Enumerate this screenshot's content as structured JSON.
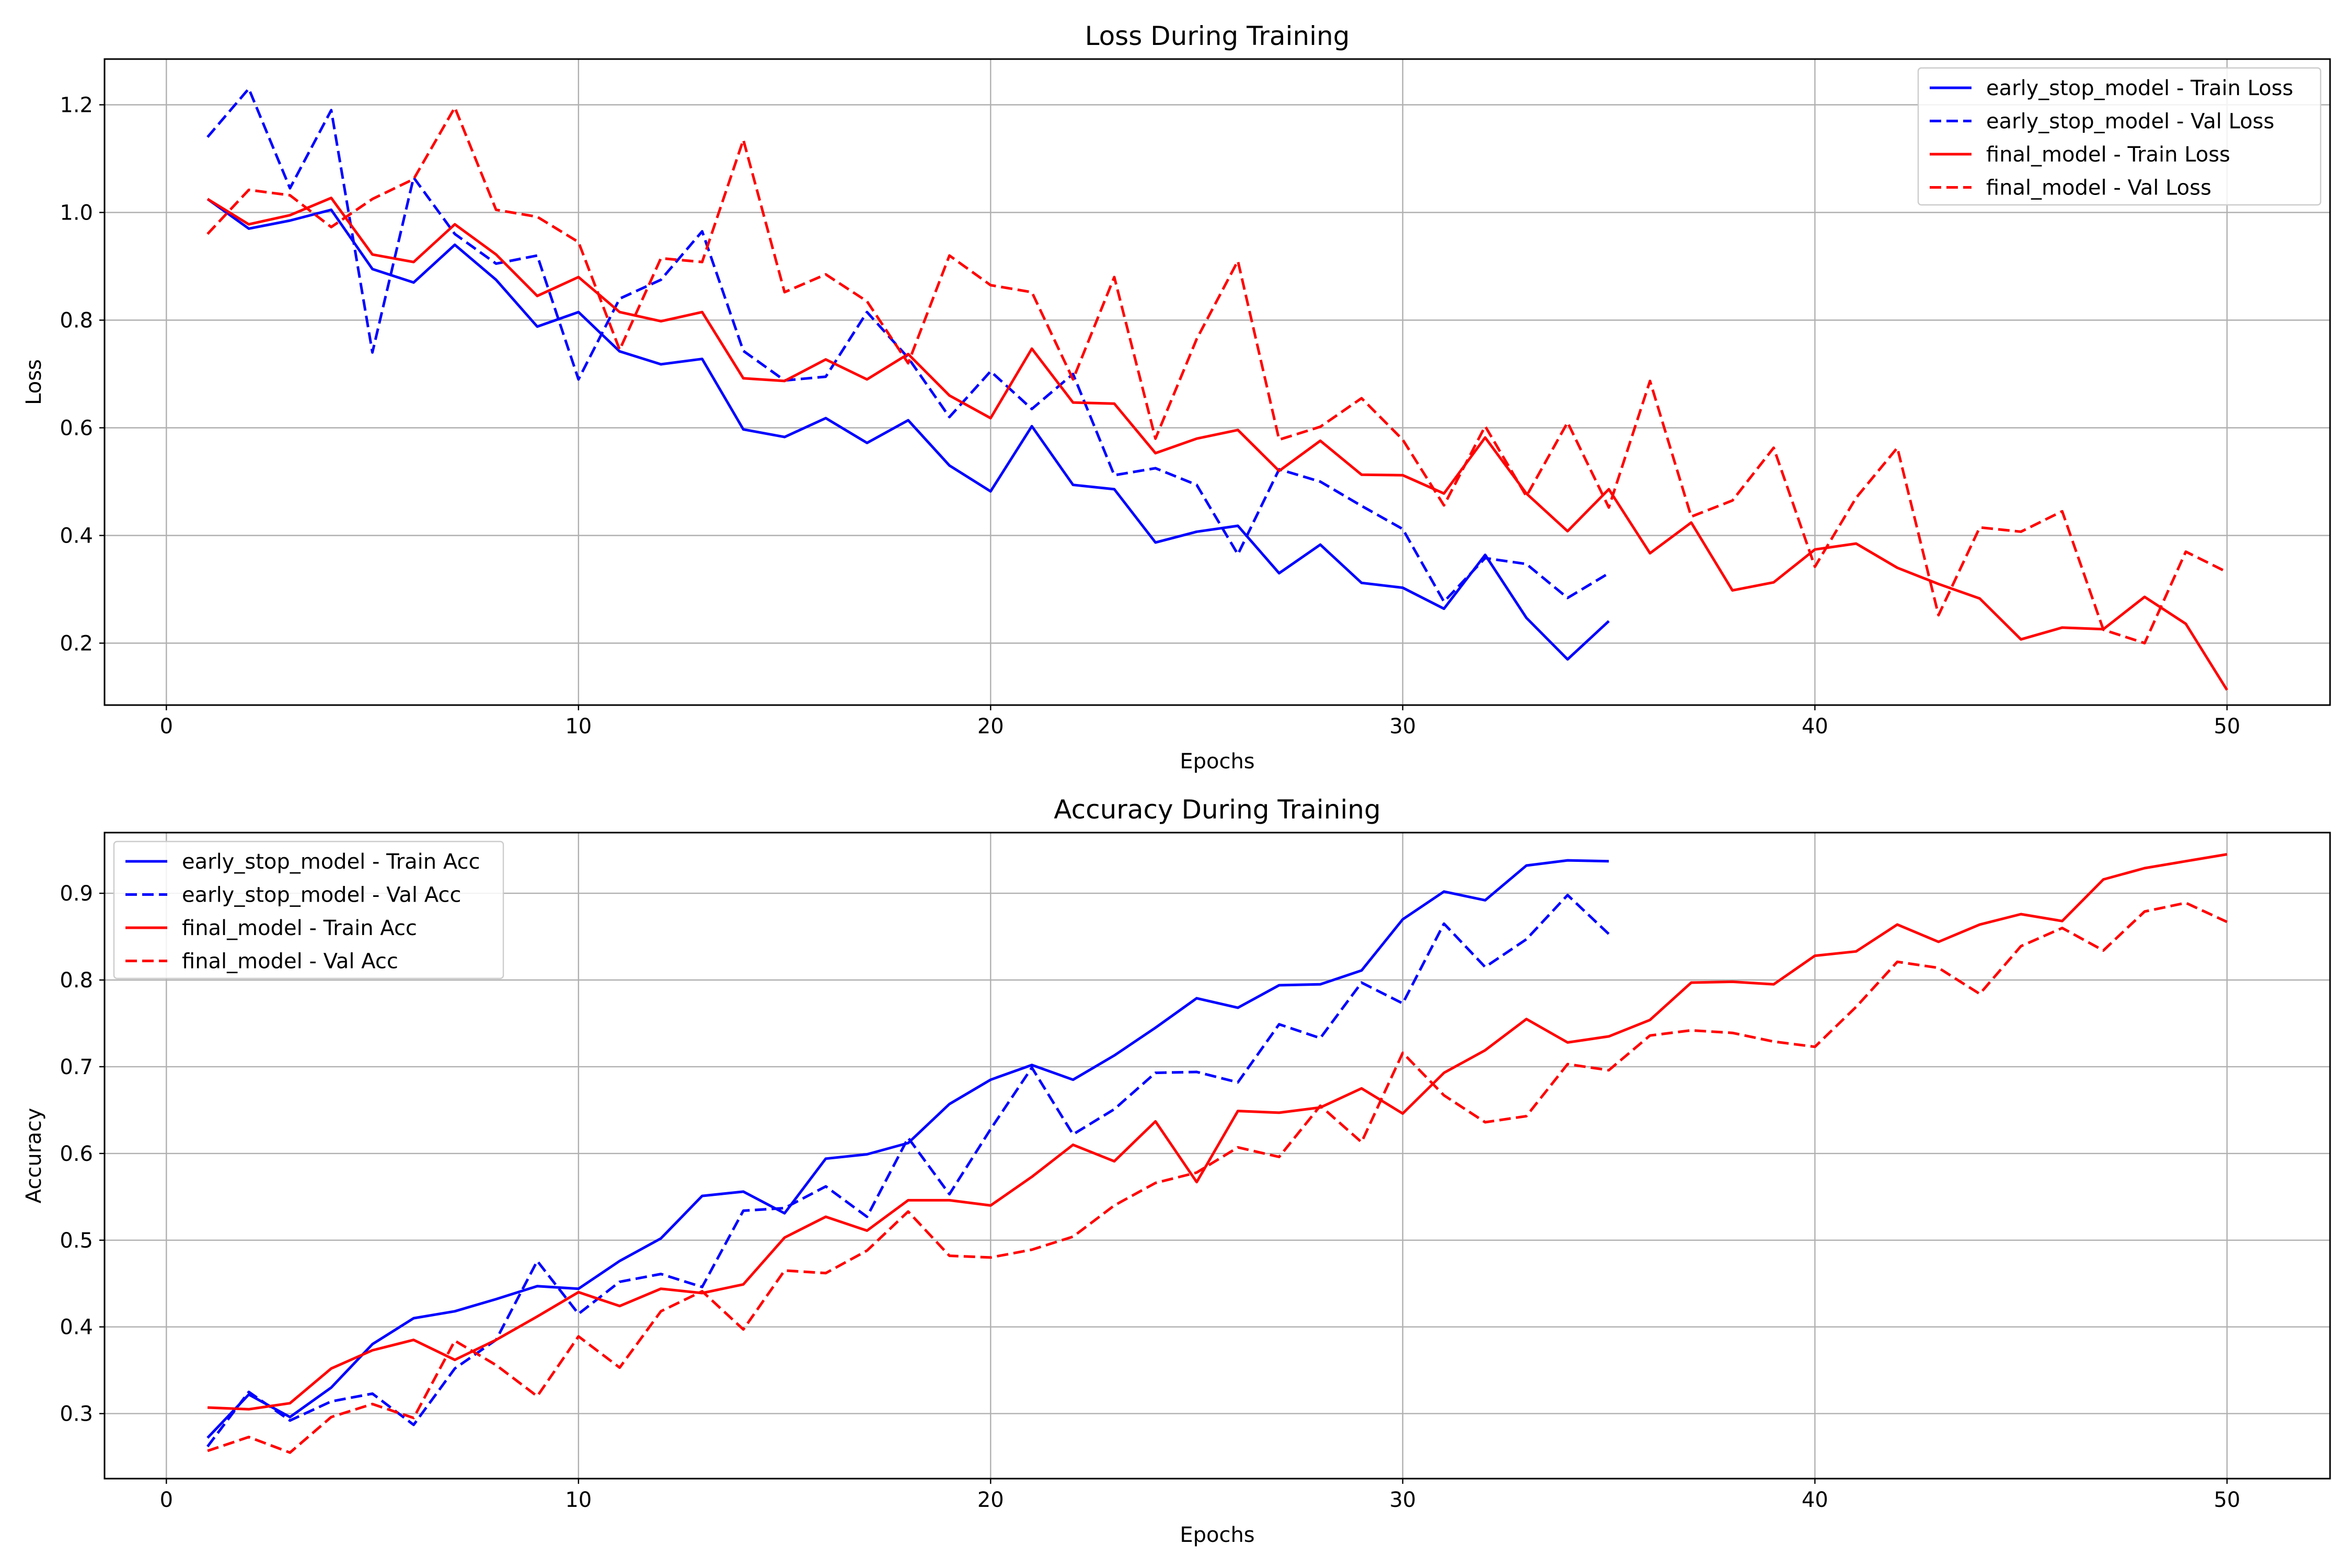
{
  "colors": {
    "early_stop_model": "#0000ff",
    "final_model": "#ff0000",
    "grid": "#b0b0b0"
  },
  "chart_data": [
    {
      "type": "line",
      "title": "Loss During Training",
      "xlabel": "Epochs",
      "ylabel": "Loss",
      "xlim": [
        -1.5,
        52.5
      ],
      "ylim": [
        0.085,
        1.285
      ],
      "xticks": [
        0,
        10,
        20,
        30,
        40,
        50
      ],
      "yticks": [
        0.2,
        0.4,
        0.6,
        0.8,
        1.0,
        1.2
      ],
      "ytick_labels": [
        "0.2",
        "0.4",
        "0.6",
        "0.8",
        "1.0",
        "1.2"
      ],
      "grid": true,
      "legend_position": "upper right",
      "series": [
        {
          "name": "early_stop_model - Train Loss",
          "color": "#0000ff",
          "style": "solid",
          "x": [
            1,
            2,
            3,
            4,
            5,
            6,
            7,
            8,
            9,
            10,
            11,
            12,
            13,
            14,
            15,
            16,
            17,
            18,
            19,
            20,
            21,
            22,
            23,
            24,
            25,
            26,
            27,
            28,
            29,
            30,
            31,
            32,
            33,
            34,
            35
          ],
          "values": [
            1.025,
            0.97,
            0.985,
            1.005,
            0.895,
            0.87,
            0.94,
            0.875,
            0.788,
            0.815,
            0.742,
            0.718,
            0.728,
            0.597,
            0.583,
            0.618,
            0.572,
            0.614,
            0.53,
            0.482,
            0.603,
            0.494,
            0.486,
            0.387,
            0.407,
            0.418,
            0.33,
            0.383,
            0.312,
            0.303,
            0.264,
            0.364,
            0.247,
            0.17,
            0.241
          ]
        },
        {
          "name": "early_stop_model - Val Loss",
          "color": "#0000ff",
          "style": "dashed",
          "x": [
            1,
            2,
            3,
            4,
            5,
            6,
            7,
            8,
            9,
            10,
            11,
            12,
            13,
            14,
            15,
            16,
            17,
            18,
            19,
            20,
            21,
            22,
            23,
            24,
            25,
            26,
            27,
            28,
            29,
            30,
            31,
            32,
            33,
            34,
            35
          ],
          "values": [
            1.14,
            1.23,
            1.045,
            1.19,
            0.74,
            1.065,
            0.96,
            0.905,
            0.92,
            0.69,
            0.84,
            0.875,
            0.965,
            0.743,
            0.688,
            0.695,
            0.815,
            0.73,
            0.62,
            0.705,
            0.635,
            0.7,
            0.512,
            0.525,
            0.494,
            0.365,
            0.523,
            0.5,
            0.455,
            0.412,
            0.277,
            0.358,
            0.347,
            0.284,
            0.33
          ]
        },
        {
          "name": "final_model - Train Loss",
          "color": "#ff0000",
          "style": "solid",
          "x": [
            1,
            2,
            3,
            4,
            5,
            6,
            7,
            8,
            9,
            10,
            11,
            12,
            13,
            14,
            15,
            16,
            17,
            18,
            19,
            20,
            21,
            22,
            23,
            24,
            25,
            26,
            27,
            28,
            29,
            30,
            31,
            32,
            33,
            34,
            35,
            36,
            37,
            38,
            39,
            40,
            41,
            42,
            43,
            44,
            45,
            46,
            47,
            48,
            49,
            50
          ],
          "values": [
            1.025,
            0.978,
            0.995,
            1.027,
            0.922,
            0.908,
            0.978,
            0.922,
            0.845,
            0.88,
            0.815,
            0.798,
            0.815,
            0.692,
            0.687,
            0.727,
            0.69,
            0.737,
            0.66,
            0.618,
            0.747,
            0.647,
            0.645,
            0.553,
            0.58,
            0.596,
            0.52,
            0.576,
            0.513,
            0.512,
            0.478,
            0.582,
            0.478,
            0.408,
            0.486,
            0.367,
            0.424,
            0.298,
            0.313,
            0.374,
            0.385,
            0.34,
            0.31,
            0.283,
            0.207,
            0.229,
            0.226,
            0.286,
            0.236,
            0.113
          ]
        },
        {
          "name": "final_model - Val Loss",
          "color": "#ff0000",
          "style": "dashed",
          "x": [
            1,
            2,
            3,
            4,
            5,
            6,
            7,
            8,
            9,
            10,
            11,
            12,
            13,
            14,
            15,
            16,
            17,
            18,
            19,
            20,
            21,
            22,
            23,
            24,
            25,
            26,
            27,
            28,
            29,
            30,
            31,
            32,
            33,
            34,
            35,
            36,
            37,
            38,
            39,
            40,
            41,
            42,
            43,
            44,
            45,
            46,
            47,
            48,
            49,
            50
          ],
          "values": [
            0.96,
            1.042,
            1.032,
            0.973,
            1.025,
            1.062,
            1.195,
            1.005,
            0.992,
            0.945,
            0.745,
            0.915,
            0.908,
            1.135,
            0.852,
            0.885,
            0.835,
            0.72,
            0.92,
            0.865,
            0.852,
            0.69,
            0.88,
            0.58,
            0.765,
            0.91,
            0.578,
            0.602,
            0.655,
            0.578,
            0.456,
            0.603,
            0.473,
            0.61,
            0.452,
            0.687,
            0.435,
            0.465,
            0.563,
            0.342,
            0.47,
            0.563,
            0.252,
            0.415,
            0.407,
            0.445,
            0.225,
            0.2,
            0.37,
            0.332
          ]
        }
      ]
    },
    {
      "type": "line",
      "title": "Accuracy During Training",
      "xlabel": "Epochs",
      "ylabel": "Accuracy",
      "xlim": [
        -1.5,
        52.5
      ],
      "ylim": [
        0.225,
        0.97
      ],
      "xticks": [
        0,
        10,
        20,
        30,
        40,
        50
      ],
      "yticks": [
        0.3,
        0.4,
        0.5,
        0.6,
        0.7,
        0.8,
        0.9
      ],
      "ytick_labels": [
        "0.3",
        "0.4",
        "0.5",
        "0.6",
        "0.7",
        "0.8",
        "0.9"
      ],
      "grid": true,
      "legend_position": "upper left",
      "series": [
        {
          "name": "early_stop_model - Train Acc",
          "color": "#0000ff",
          "style": "solid",
          "x": [
            1,
            2,
            3,
            4,
            5,
            6,
            7,
            8,
            9,
            10,
            11,
            12,
            13,
            14,
            15,
            16,
            17,
            18,
            19,
            20,
            21,
            22,
            23,
            24,
            25,
            26,
            27,
            28,
            29,
            30,
            31,
            32,
            33,
            34,
            35
          ],
          "values": [
            0.272,
            0.322,
            0.296,
            0.33,
            0.38,
            0.41,
            0.418,
            0.432,
            0.447,
            0.444,
            0.476,
            0.502,
            0.551,
            0.556,
            0.531,
            0.594,
            0.599,
            0.612,
            0.657,
            0.685,
            0.702,
            0.685,
            0.713,
            0.745,
            0.779,
            0.768,
            0.794,
            0.795,
            0.811,
            0.87,
            0.902,
            0.892,
            0.932,
            0.938,
            0.937
          ]
        },
        {
          "name": "early_stop_model - Val Acc",
          "color": "#0000ff",
          "style": "dashed",
          "x": [
            1,
            2,
            3,
            4,
            5,
            6,
            7,
            8,
            9,
            10,
            11,
            12,
            13,
            14,
            15,
            16,
            17,
            18,
            19,
            20,
            21,
            22,
            23,
            24,
            25,
            26,
            27,
            28,
            29,
            30,
            31,
            32,
            33,
            34,
            35
          ],
          "values": [
            0.262,
            0.325,
            0.292,
            0.314,
            0.323,
            0.287,
            0.352,
            0.385,
            0.476,
            0.415,
            0.452,
            0.461,
            0.446,
            0.534,
            0.537,
            0.562,
            0.527,
            0.618,
            0.553,
            0.628,
            0.699,
            0.622,
            0.651,
            0.693,
            0.694,
            0.682,
            0.749,
            0.733,
            0.797,
            0.773,
            0.865,
            0.815,
            0.847,
            0.898,
            0.853
          ]
        },
        {
          "name": "final_model - Train Acc",
          "color": "#ff0000",
          "style": "solid",
          "x": [
            1,
            2,
            3,
            4,
            5,
            6,
            7,
            8,
            9,
            10,
            11,
            12,
            13,
            14,
            15,
            16,
            17,
            18,
            19,
            20,
            21,
            22,
            23,
            24,
            25,
            26,
            27,
            28,
            29,
            30,
            31,
            32,
            33,
            34,
            35,
            36,
            37,
            38,
            39,
            40,
            41,
            42,
            43,
            44,
            45,
            46,
            47,
            48,
            49,
            50
          ],
          "values": [
            0.307,
            0.305,
            0.312,
            0.352,
            0.373,
            0.385,
            0.362,
            0.385,
            0.412,
            0.44,
            0.424,
            0.444,
            0.439,
            0.449,
            0.503,
            0.527,
            0.511,
            0.546,
            0.546,
            0.54,
            0.573,
            0.61,
            0.591,
            0.637,
            0.567,
            0.649,
            0.647,
            0.653,
            0.675,
            0.646,
            0.693,
            0.719,
            0.755,
            0.728,
            0.735,
            0.754,
            0.797,
            0.798,
            0.795,
            0.828,
            0.833,
            0.864,
            0.844,
            0.864,
            0.876,
            0.868,
            0.916,
            0.929,
            0.937,
            0.945
          ]
        },
        {
          "name": "final_model - Val Acc",
          "color": "#ff0000",
          "style": "dashed",
          "x": [
            1,
            2,
            3,
            4,
            5,
            6,
            7,
            8,
            9,
            10,
            11,
            12,
            13,
            14,
            15,
            16,
            17,
            18,
            19,
            20,
            21,
            22,
            23,
            24,
            25,
            26,
            27,
            28,
            29,
            30,
            31,
            32,
            33,
            34,
            35,
            36,
            37,
            38,
            39,
            40,
            41,
            42,
            43,
            44,
            45,
            46,
            47,
            48,
            49,
            50
          ],
          "values": [
            0.257,
            0.273,
            0.255,
            0.296,
            0.311,
            0.295,
            0.384,
            0.356,
            0.32,
            0.389,
            0.353,
            0.418,
            0.441,
            0.397,
            0.465,
            0.462,
            0.488,
            0.533,
            0.482,
            0.48,
            0.489,
            0.504,
            0.54,
            0.566,
            0.578,
            0.607,
            0.596,
            0.655,
            0.613,
            0.716,
            0.667,
            0.636,
            0.643,
            0.703,
            0.696,
            0.736,
            0.742,
            0.739,
            0.729,
            0.723,
            0.769,
            0.821,
            0.814,
            0.784,
            0.839,
            0.86,
            0.834,
            0.879,
            0.889,
            0.867
          ]
        }
      ]
    }
  ]
}
